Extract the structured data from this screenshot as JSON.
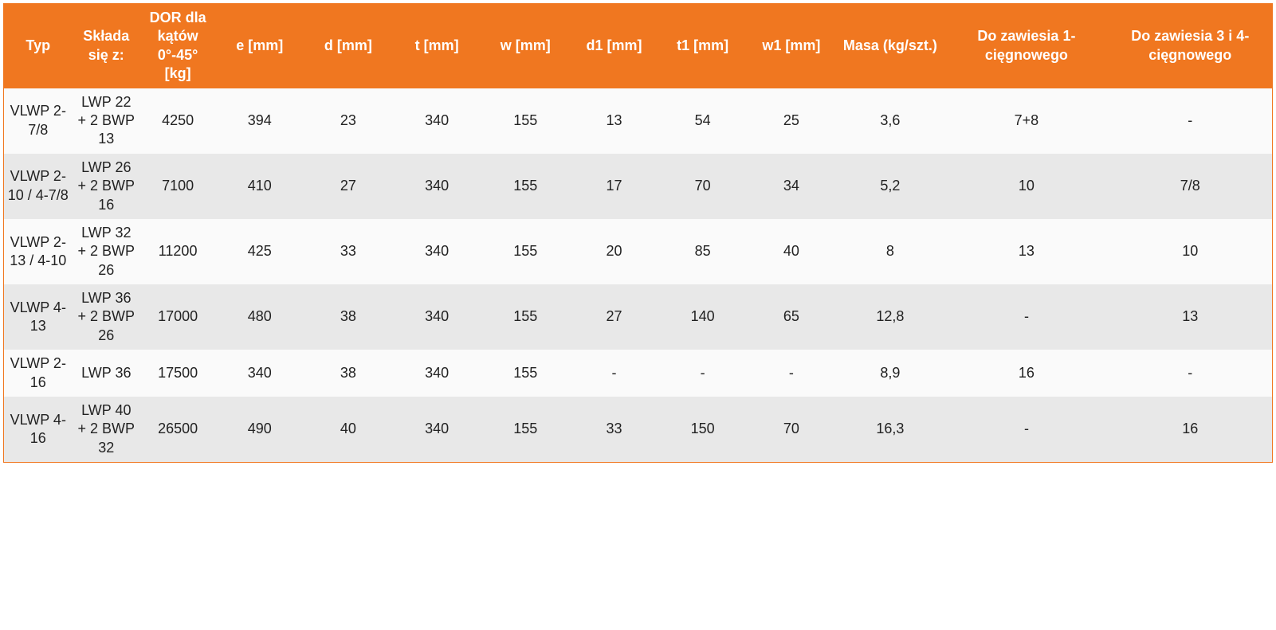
{
  "table": {
    "header_bg": "#f07720",
    "header_fg": "#ffffff",
    "row_odd_bg": "#fafafa",
    "row_even_bg": "#e8e8e8",
    "text_color": "#222222",
    "border_color": "#f07720",
    "font_family": "Arial",
    "header_fontsize": 18,
    "cell_fontsize": 18,
    "columns": [
      "Typ",
      "Składa się z:",
      "DOR dla kątów 0°-45° [kg]",
      "e [mm]",
      "d [mm]",
      "t [mm]",
      "w [mm]",
      "d1 [mm]",
      "t1 [mm]",
      "w1 [mm]",
      "Masa (kg/szt.)",
      "Do zawiesia 1- cięgnowego",
      "Do zawiesia 3 i 4- cięgnowego"
    ],
    "rows": [
      [
        "VLWP 2-7/8",
        "LWP 22 + 2 BWP 13",
        "4250",
        "394",
        "23",
        "340",
        "155",
        "13",
        "54",
        "25",
        "3,6",
        "7+8",
        "-"
      ],
      [
        "VLWP 2-10 / 4-7/8",
        "LWP 26 + 2 BWP 16",
        "7100",
        "410",
        "27",
        "340",
        "155",
        "17",
        "70",
        "34",
        "5,2",
        "10",
        "7/8"
      ],
      [
        "VLWP 2-13 / 4-10",
        "LWP 32 + 2 BWP 26",
        "11200",
        "425",
        "33",
        "340",
        "155",
        "20",
        "85",
        "40",
        "8",
        "13",
        "10"
      ],
      [
        "VLWP 4-13",
        "LWP 36 + 2 BWP 26",
        "17000",
        "480",
        "38",
        "340",
        "155",
        "27",
        "140",
        "65",
        "12,8",
        "-",
        "13"
      ],
      [
        "VLWP 2-16",
        "LWP 36",
        "17500",
        "340",
        "38",
        "340",
        "155",
        "-",
        "-",
        "-",
        "8,9",
        "16",
        "-"
      ],
      [
        "VLWP 4-16",
        "LWP 40 + 2 BWP 32",
        "26500",
        "490",
        "40",
        "340",
        "155",
        "33",
        "150",
        "70",
        "16,3",
        "-",
        "16"
      ]
    ]
  }
}
